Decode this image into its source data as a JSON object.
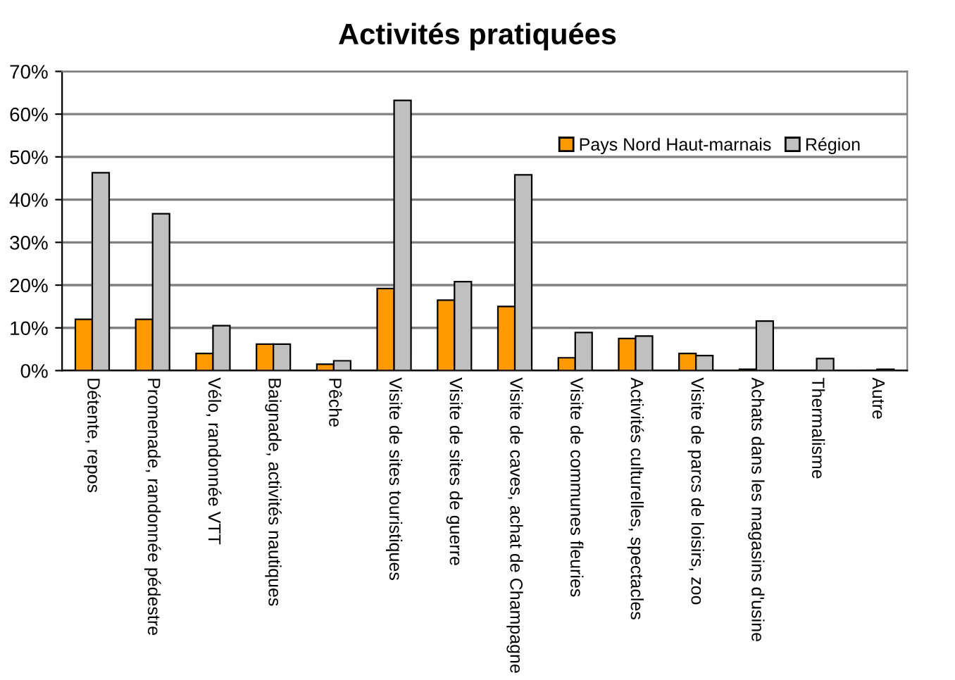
{
  "chart_data": {
    "type": "bar",
    "title": "Activités pratiquées",
    "categories": [
      "Détente, repos",
      "Promenade, randonnée pédestre",
      "Vélo, randonnée VTT",
      "Baignade, activités nautiques",
      "Pêche",
      "Visite de sites touristiques",
      "Visite de sites de guerre",
      "Visite de caves, achat de Champagne",
      "Visite de communes fleuries",
      "Activités culturelles, spectacles",
      "Visite de parcs de loisirs, zoo",
      "Achats dans les magasins d'usine",
      "Thermalisme",
      "Autre"
    ],
    "series": [
      {
        "name": "Pays Nord Haut-marnais",
        "color": "#ff9900",
        "values": [
          12,
          12,
          4,
          6.2,
          1.5,
          19.2,
          16.5,
          15,
          3,
          7.5,
          4,
          0.3,
          0,
          0
        ]
      },
      {
        "name": "Région",
        "color": "#c0c0c0",
        "values": [
          46.3,
          36.7,
          10.5,
          6.2,
          2.3,
          63.2,
          20.8,
          45.8,
          8.9,
          8.1,
          3.5,
          11.6,
          2.8,
          0.3
        ]
      }
    ],
    "ylim": [
      0,
      70
    ],
    "yticks": [
      {
        "value": 0,
        "label": "0%"
      },
      {
        "value": 10,
        "label": "10%"
      },
      {
        "value": 20,
        "label": "20%"
      },
      {
        "value": 30,
        "label": "30%"
      },
      {
        "value": 40,
        "label": "40%"
      },
      {
        "value": 50,
        "label": "50%"
      },
      {
        "value": 60,
        "label": "60%"
      },
      {
        "value": 70,
        "label": "70%"
      }
    ],
    "grid": "y",
    "legend": "top right"
  }
}
